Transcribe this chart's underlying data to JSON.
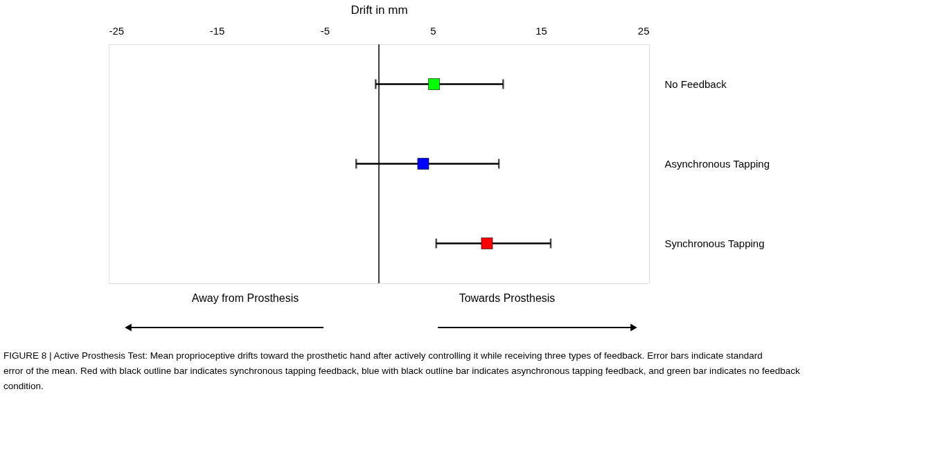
{
  "chart_data": {
    "type": "scatter",
    "xlabel": "Drift in mm",
    "categories": [
      "No Feedback",
      "Asynchronous Tapping",
      "Synchronous Tapping"
    ],
    "values": [
      5.1,
      4.1,
      10.0
    ],
    "colors": [
      "#00ff00",
      "#0000ff",
      "#ff0000"
    ],
    "errors": [
      [
        -0.3,
        11.5
      ],
      [
        -2.1,
        11.1
      ],
      [
        5.3,
        15.9
      ]
    ],
    "xlim": [
      -25,
      25
    ],
    "xticks": [
      -25,
      -15,
      -5,
      5,
      15,
      25
    ],
    "ref_lines": [
      {
        "axis": "x",
        "value": 0,
        "color": "#000000"
      }
    ],
    "marker": "square",
    "grid": false,
    "orientation": "horizontal",
    "annotations": [
      "Away from Prosthesis",
      "Towards Prosthesis",
      "FIGURE 8 | Active Prosthesis Test: Mean proprioceptive drifts toward the prosthetic hand after actively controlling it while receiving three types of feedback. Error bars indicate standard error of the mean. Red with black outline bar indicates synchronous tapping feedback, blue with black outline bar indicates asynchronous tapping feedback, and green bar indicates no feedback condition."
    ]
  }
}
